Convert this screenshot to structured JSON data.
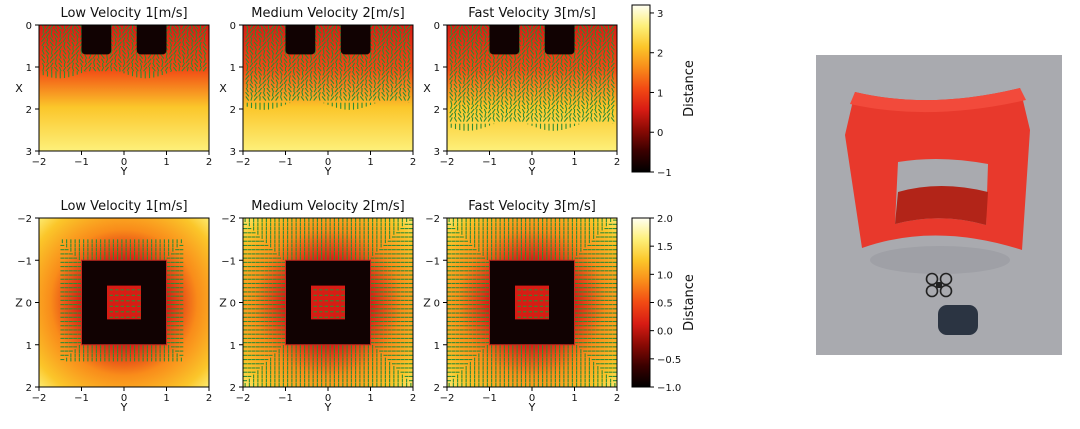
{
  "figure": {
    "colors": {
      "colormap": [
        "#000000",
        "#3a0000",
        "#8a0a04",
        "#d81c14",
        "#f24a14",
        "#f98c1a",
        "#fbc62a",
        "#fdf07a",
        "#fffff2"
      ],
      "obstacle": "#110202",
      "obstacle_edge": "#c82a20",
      "arrow": "#2f8c32",
      "photo_bg": "#a9aaaf",
      "gate_front": "#e8392c",
      "gate_top": "#f24a3b",
      "gate_shadow": "#b22418",
      "drone": "#222222",
      "drone_shadow": "#2b3442"
    }
  },
  "chart_data": [
    {
      "type": "heatmap",
      "view": "top",
      "title": "Low Velocity 1[m/s]",
      "velocity_mps": 1,
      "xlabel": "Y",
      "ylabel": "X",
      "xlim": [
        -2,
        2
      ],
      "ylim": [
        0,
        3
      ],
      "y_inverted": true,
      "xticks": [
        "−2",
        "−1",
        "0",
        "1",
        "2"
      ],
      "yticks": [
        "0",
        "1",
        "2",
        "3"
      ],
      "obstacle_posts_y": [
        [
          -1,
          -0.3
        ],
        [
          0.3,
          1
        ]
      ],
      "obstacle_depth_x": 0.7,
      "arrow_front_x": 1.1
    },
    {
      "type": "heatmap",
      "view": "top",
      "title": "Medium Velocity 2[m/s]",
      "velocity_mps": 2,
      "xlabel": "Y",
      "ylabel": "X",
      "xlim": [
        -2,
        2
      ],
      "ylim": [
        0,
        3
      ],
      "y_inverted": true,
      "xticks": [
        "−2",
        "−1",
        "0",
        "1",
        "2"
      ],
      "yticks": [
        "0",
        "1",
        "2",
        "3"
      ],
      "obstacle_posts_y": [
        [
          -1,
          -0.3
        ],
        [
          0.3,
          1
        ]
      ],
      "obstacle_depth_x": 0.7,
      "arrow_front_x": 1.85
    },
    {
      "type": "heatmap",
      "view": "top",
      "title": "Fast Velocity 3[m/s]",
      "velocity_mps": 3,
      "xlabel": "Y",
      "ylabel": "X",
      "xlim": [
        -2,
        2
      ],
      "ylim": [
        0,
        3
      ],
      "y_inverted": true,
      "xticks": [
        "−2",
        "−1",
        "0",
        "1",
        "2"
      ],
      "yticks": [
        "0",
        "1",
        "2",
        "3"
      ],
      "obstacle_posts_y": [
        [
          -1,
          -0.3
        ],
        [
          0.3,
          1
        ]
      ],
      "obstacle_depth_x": 0.7,
      "arrow_front_x": 2.35
    },
    {
      "type": "heatmap",
      "view": "front",
      "title": "Low Velocity 1[m/s]",
      "velocity_mps": 1,
      "xlabel": "Y",
      "ylabel": "Z",
      "xlim": [
        -2,
        2
      ],
      "ylim": [
        -2,
        2
      ],
      "y_inverted": true,
      "xticks": [
        "−2",
        "−1",
        "0",
        "1",
        "2"
      ],
      "yticks": [
        "−2",
        "−1",
        "0",
        "1",
        "2"
      ],
      "frame_outer": [
        -1,
        1
      ],
      "frame_inner": [
        -0.4,
        0.4
      ],
      "arrow_reach": 0.45
    },
    {
      "type": "heatmap",
      "view": "front",
      "title": "Medium Velocity 2[m/s]",
      "velocity_mps": 2,
      "xlabel": "Y",
      "ylabel": "Z",
      "xlim": [
        -2,
        2
      ],
      "ylim": [
        -2,
        2
      ],
      "y_inverted": true,
      "xticks": [
        "−2",
        "−1",
        "0",
        "1",
        "2"
      ],
      "yticks": [
        "−2",
        "−1",
        "0",
        "1",
        "2"
      ],
      "frame_outer": [
        -1,
        1
      ],
      "frame_inner": [
        -0.4,
        0.4
      ],
      "arrow_reach": 1.0
    },
    {
      "type": "heatmap",
      "view": "front",
      "title": "Fast Velocity 3[m/s]",
      "velocity_mps": 3,
      "xlabel": "Y",
      "ylabel": "Z",
      "xlim": [
        -2,
        2
      ],
      "ylim": [
        -2,
        2
      ],
      "y_inverted": true,
      "xticks": [
        "−2",
        "−1",
        "0",
        "1",
        "2"
      ],
      "yticks": [
        "−2",
        "−1",
        "0",
        "1",
        "2"
      ],
      "frame_outer": [
        -1,
        1
      ],
      "frame_inner": [
        -0.4,
        0.4
      ],
      "arrow_reach": 1.0
    }
  ],
  "colorbars": [
    {
      "label": "Distance",
      "range": [
        -1,
        3.2
      ],
      "ticks": [
        "−1",
        "0",
        "1",
        "2",
        "3"
      ],
      "tick_values": [
        -1,
        0,
        1,
        2,
        3
      ]
    },
    {
      "label": "Distance",
      "range": [
        -1,
        2
      ],
      "ticks": [
        "−1.0",
        "−0.5",
        "0.0",
        "0.5",
        "1.0",
        "1.5",
        "2.0"
      ],
      "tick_values": [
        -1,
        -0.5,
        0,
        0.5,
        1,
        1.5,
        2
      ]
    }
  ]
}
